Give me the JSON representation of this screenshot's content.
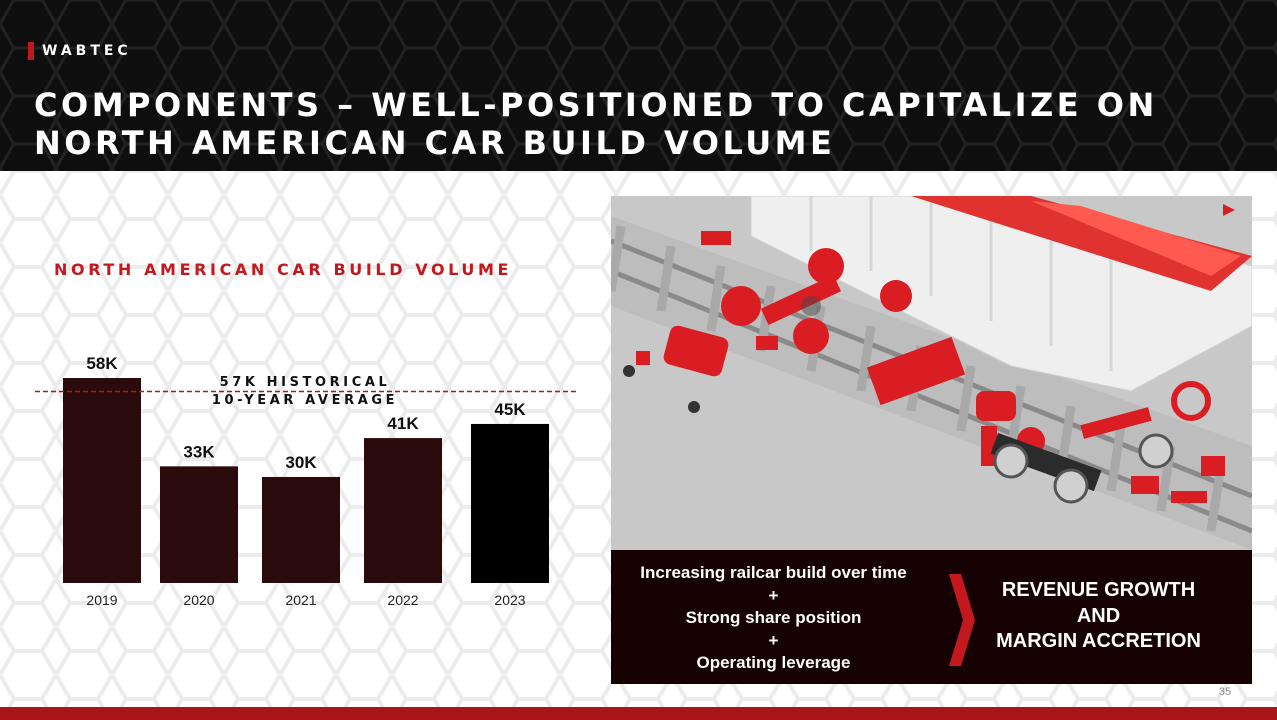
{
  "brand": "WABTEC",
  "title_line1": "COMPONENTS – WELL-POSITIONED TO CAPITALIZE ON",
  "title_line2": "NORTH AMERICAN CAR BUILD VOLUME",
  "colors": {
    "accent": "#c3181d",
    "bar": "#2a0a0a",
    "bar_last": "#000000",
    "panel": "#160202",
    "footer": "#a8161a"
  },
  "chart_data": {
    "type": "bar",
    "title": "NORTH AMERICAN CAR BUILD VOLUME",
    "categories": [
      "2019",
      "2020",
      "2021",
      "2022",
      "2023"
    ],
    "values": [
      58,
      33,
      30,
      41,
      45
    ],
    "data_labels": [
      "58K",
      "33K",
      "30K",
      "41K",
      "45K"
    ],
    "ylim": [
      0,
      65
    ],
    "reference_line": {
      "value": 57,
      "label_line1": "57K HISTORICAL",
      "label_line2": "10-YEAR AVERAGE"
    },
    "grid": false,
    "legend": "none"
  },
  "panel": {
    "left_lines": [
      "Increasing railcar build over time",
      "+",
      "Strong share position",
      "+",
      "Operating leverage"
    ],
    "right_lines": [
      "REVENUE GROWTH",
      "AND",
      "MARGIN ACCRETION"
    ]
  },
  "illustration_icon": "exploded-railcar-components-illustration",
  "page_number": "35"
}
